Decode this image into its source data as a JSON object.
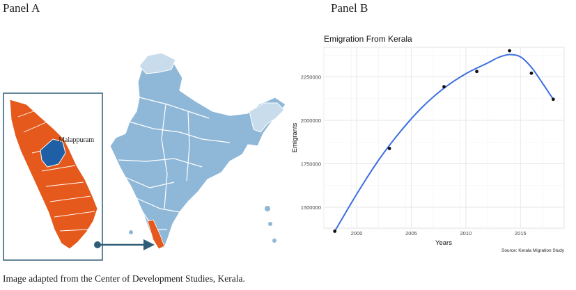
{
  "panel_a": {
    "label": "Panel A",
    "district_label": "Malappuram",
    "caption": "Image adapted from the Center of Development Studies, Kerala."
  },
  "panel_b": {
    "label": "Panel B"
  },
  "colors": {
    "kerala_fill": "#e55a1c",
    "malappuram_fill": "#1f5fa6",
    "india_fill": "#8fb8d8",
    "india_light_fill": "#c9dcec",
    "arrow": "#2f5d77",
    "box_stroke": "#2f5d77",
    "curve": "#3b6ee0",
    "points": "#111111",
    "grid": "#e6e6e6"
  },
  "chart_data": {
    "type": "scatter",
    "title": "Emigration From Kerala",
    "xlabel": "Years",
    "ylabel": "Emigrants",
    "source_note": "Source: Kerala Migration Study",
    "xlim": [
      1997,
      2019
    ],
    "ylim": [
      1380000,
      2420000
    ],
    "x_ticks": [
      2000,
      2005,
      2010,
      2015
    ],
    "y_ticks": [
      1500000,
      1750000,
      2000000,
      2250000
    ],
    "y_tick_labels": [
      "1500000",
      "1750000",
      "2000000",
      "2250000"
    ],
    "grid": true,
    "series": [
      {
        "points": [
          {
            "x": 1998,
            "y": 1362000
          },
          {
            "x": 2003,
            "y": 1838000
          },
          {
            "x": 2008,
            "y": 2193000
          },
          {
            "x": 2011,
            "y": 2281000
          },
          {
            "x": 2014,
            "y": 2400000
          },
          {
            "x": 2016,
            "y": 2271000
          },
          {
            "x": 2018,
            "y": 2121000
          }
        ]
      }
    ],
    "smooth_curve": [
      {
        "x": 1998,
        "y": 1362000
      },
      {
        "x": 2000,
        "y": 1575000
      },
      {
        "x": 2002,
        "y": 1770000
      },
      {
        "x": 2004,
        "y": 1935000
      },
      {
        "x": 2006,
        "y": 2075000
      },
      {
        "x": 2008,
        "y": 2185000
      },
      {
        "x": 2010,
        "y": 2268000
      },
      {
        "x": 2012,
        "y": 2330000
      },
      {
        "x": 2013,
        "y": 2362000
      },
      {
        "x": 2014,
        "y": 2378000
      },
      {
        "x": 2015,
        "y": 2365000
      },
      {
        "x": 2016,
        "y": 2305000
      },
      {
        "x": 2017,
        "y": 2215000
      },
      {
        "x": 2018,
        "y": 2121000
      }
    ]
  }
}
